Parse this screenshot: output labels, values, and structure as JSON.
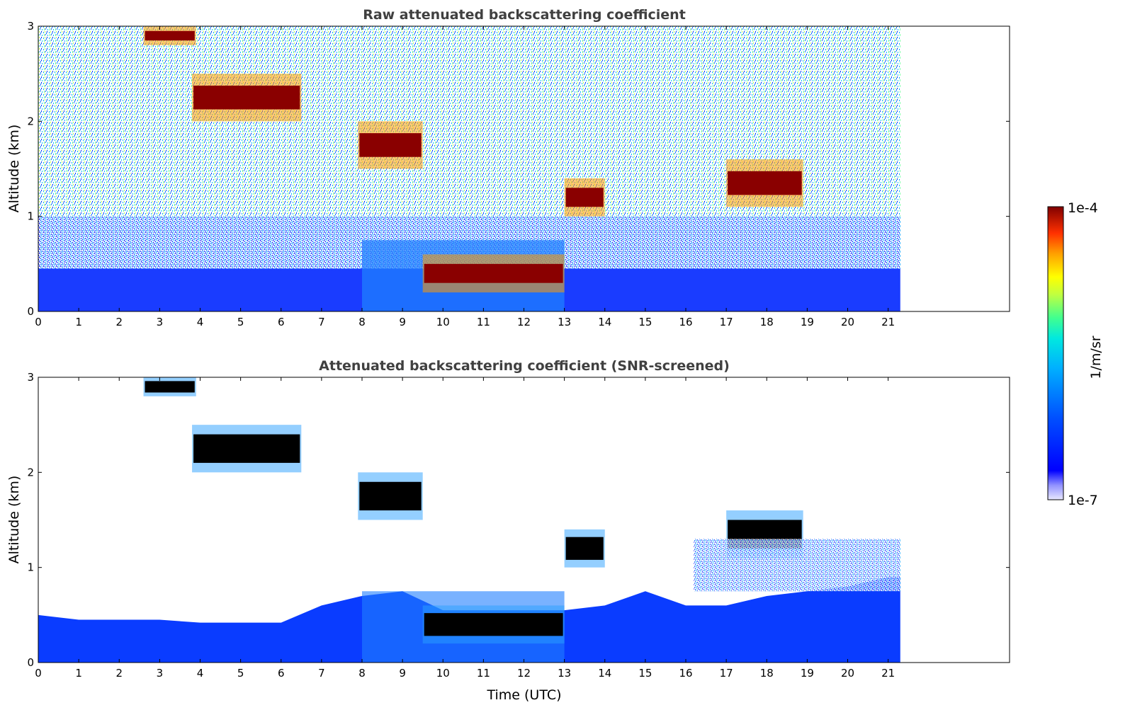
{
  "colors": {
    "colormap": [
      "#e8e8ff",
      "#b4b4ff",
      "#8080ff",
      "#0000ff",
      "#0050ff",
      "#00a0ff",
      "#00e0f0",
      "#40ff90",
      "#b0ff40",
      "#ffff00",
      "#ffb000",
      "#ff5000",
      "#e00000",
      "#800000"
    ],
    "thresholded": "#000000",
    "title_text": "#404040"
  },
  "chart_data": [
    {
      "type": "heatmap",
      "title": "Raw attenuated backscattering coefficient",
      "xlabel": "",
      "ylabel": "Altitude (km)",
      "xlim": [
        0,
        24
      ],
      "ylim": [
        0,
        3
      ],
      "xticks": [
        "0",
        "1",
        "2",
        "3",
        "4",
        "5",
        "6",
        "7",
        "8",
        "9",
        "10",
        "11",
        "12",
        "13",
        "14",
        "15",
        "16",
        "17",
        "18",
        "19",
        "20",
        "21"
      ],
      "yticks": [
        "0",
        "1",
        "2",
        "3"
      ],
      "data_extent_time": [
        0,
        21.3
      ],
      "cloud_layers": [
        {
          "time": [
            2.6,
            3.9
          ],
          "altitude": [
            2.8,
            3.0
          ]
        },
        {
          "time": [
            3.8,
            6.5
          ],
          "altitude": [
            2.0,
            2.5
          ]
        },
        {
          "time": [
            7.9,
            9.5
          ],
          "altitude": [
            1.5,
            2.0
          ]
        },
        {
          "time": [
            9.5,
            13.0
          ],
          "altitude": [
            0.2,
            0.6
          ]
        },
        {
          "time": [
            13.0,
            14.0
          ],
          "altitude": [
            1.0,
            1.4
          ]
        },
        {
          "time": [
            17.0,
            18.9
          ],
          "altitude": [
            1.1,
            1.6
          ]
        }
      ]
    },
    {
      "type": "heatmap",
      "title": "Attenuated backscattering coefficient (SNR-screened)",
      "xlabel": "Time (UTC)",
      "ylabel": "Altitude (km)",
      "xlim": [
        0,
        24
      ],
      "ylim": [
        0,
        3
      ],
      "xticks": [
        "0",
        "1",
        "2",
        "3",
        "4",
        "5",
        "6",
        "7",
        "8",
        "9",
        "10",
        "11",
        "12",
        "13",
        "14",
        "15",
        "16",
        "17",
        "18",
        "19",
        "20",
        "21"
      ],
      "yticks": [
        "0",
        "1",
        "2",
        "3"
      ],
      "data_extent_time": [
        0,
        21.3
      ],
      "boundary_layer_top_km": [
        0.5,
        0.45,
        0.45,
        0.45,
        0.42,
        0.42,
        0.42,
        0.6,
        0.7,
        0.75,
        0.55,
        0.55,
        0.55,
        0.55,
        0.6,
        0.75,
        0.6,
        0.6,
        0.7,
        0.75,
        0.8,
        0.9
      ]
    }
  ],
  "colorbar": {
    "max_label": "1e-4",
    "min_label": "1e-7",
    "unit_label": "1/m/sr",
    "range": [
      1e-07,
      0.0001
    ],
    "scale": "log"
  }
}
